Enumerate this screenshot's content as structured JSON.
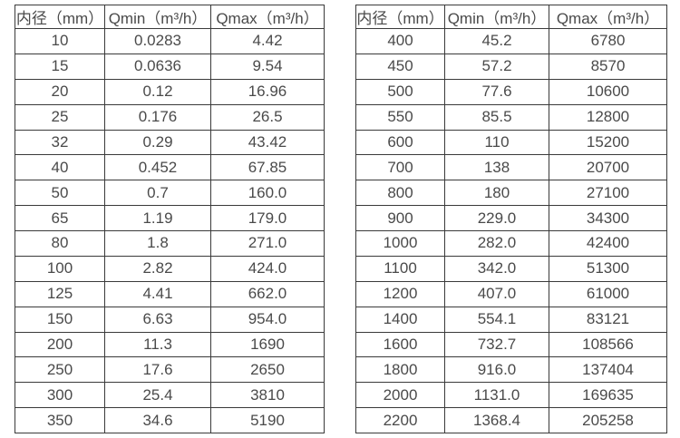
{
  "colors": {
    "background": "#ffffff",
    "border": "#3a3a3a",
    "text": "#4a4a4a"
  },
  "chart_data": [
    {
      "type": "table",
      "title": "",
      "columns": [
        "内径（mm）",
        "Qmin（m³/h）",
        "Qmax（m³/h）"
      ],
      "rows": [
        [
          "10",
          "0.0283",
          "4.42"
        ],
        [
          "15",
          "0.0636",
          "9.54"
        ],
        [
          "20",
          "0.12",
          "16.96"
        ],
        [
          "25",
          "0.176",
          "26.5"
        ],
        [
          "32",
          "0.29",
          "43.42"
        ],
        [
          "40",
          "0.452",
          "67.85"
        ],
        [
          "50",
          "0.7",
          "160.0"
        ],
        [
          "65",
          "1.19",
          "179.0"
        ],
        [
          "80",
          "1.8",
          "271.0"
        ],
        [
          "100",
          "2.82",
          "424.0"
        ],
        [
          "125",
          "4.41",
          "662.0"
        ],
        [
          "150",
          "6.63",
          "954.0"
        ],
        [
          "200",
          "11.3",
          "1690"
        ],
        [
          "250",
          "17.6",
          "2650"
        ],
        [
          "300",
          "25.4",
          "3810"
        ],
        [
          "350",
          "34.6",
          "5190"
        ]
      ]
    },
    {
      "type": "table",
      "title": "",
      "columns": [
        "内径（mm）",
        "Qmin（m³/h）",
        "Qmax（m³/h）"
      ],
      "rows": [
        [
          "400",
          "45.2",
          "6780"
        ],
        [
          "450",
          "57.2",
          "8570"
        ],
        [
          "500",
          "77.6",
          "10600"
        ],
        [
          "550",
          "85.5",
          "12800"
        ],
        [
          "600",
          "110",
          "15200"
        ],
        [
          "700",
          "138",
          "20700"
        ],
        [
          "800",
          "180",
          "27100"
        ],
        [
          "900",
          "229.0",
          "34300"
        ],
        [
          "1000",
          "282.0",
          "42400"
        ],
        [
          "1100",
          "342.0",
          "51300"
        ],
        [
          "1200",
          "407.0",
          "61000"
        ],
        [
          "1400",
          "554.1",
          "83121"
        ],
        [
          "1600",
          "732.7",
          "108566"
        ],
        [
          "1800",
          "916.0",
          "137404"
        ],
        [
          "2000",
          "1131.0",
          "169635"
        ],
        [
          "2200",
          "1368.4",
          "205258"
        ]
      ]
    }
  ]
}
